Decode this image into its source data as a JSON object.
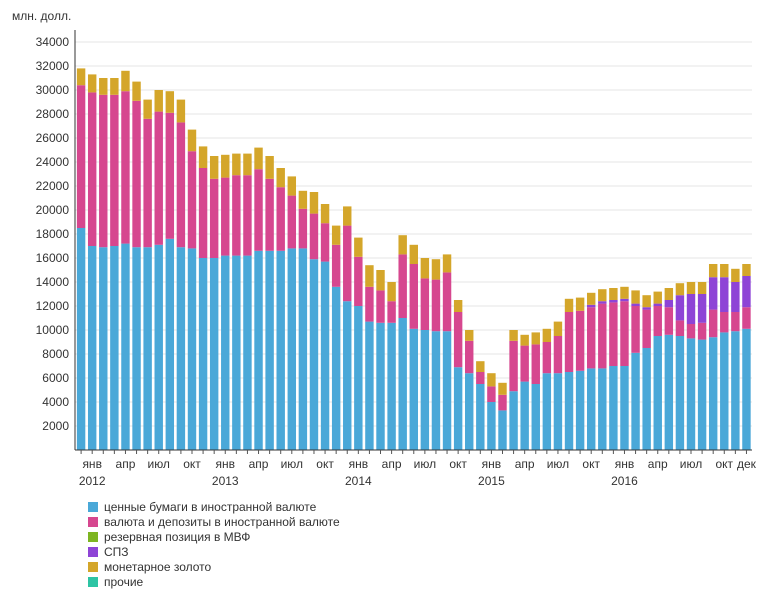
{
  "chart_data": {
    "type": "bar",
    "stacked": true,
    "ylabel": "млн. долл.",
    "ylim": [
      0,
      35000
    ],
    "yticks": [
      2000,
      4000,
      6000,
      8000,
      10000,
      12000,
      14000,
      16000,
      18000,
      20000,
      22000,
      24000,
      26000,
      28000,
      30000,
      32000,
      34000
    ],
    "grid": true,
    "legend_position": "bottom",
    "month_labels": [
      {
        "index": 1,
        "text": "янв"
      },
      {
        "index": 4,
        "text": "апр"
      },
      {
        "index": 7,
        "text": "июл"
      },
      {
        "index": 10,
        "text": "окт"
      },
      {
        "index": 13,
        "text": "янв"
      },
      {
        "index": 16,
        "text": "апр"
      },
      {
        "index": 19,
        "text": "июл"
      },
      {
        "index": 22,
        "text": "окт"
      },
      {
        "index": 25,
        "text": "янв"
      },
      {
        "index": 28,
        "text": "апр"
      },
      {
        "index": 31,
        "text": "июл"
      },
      {
        "index": 34,
        "text": "окт"
      },
      {
        "index": 37,
        "text": "янв"
      },
      {
        "index": 40,
        "text": "апр"
      },
      {
        "index": 43,
        "text": "июл"
      },
      {
        "index": 46,
        "text": "окт"
      },
      {
        "index": 49,
        "text": "янв"
      },
      {
        "index": 52,
        "text": "апр"
      },
      {
        "index": 55,
        "text": "июл"
      },
      {
        "index": 58,
        "text": "окт"
      },
      {
        "index": 60,
        "text": "дек"
      }
    ],
    "year_labels": [
      {
        "index": 1,
        "text": "2012"
      },
      {
        "index": 13,
        "text": "2013"
      },
      {
        "index": 25,
        "text": "2014"
      },
      {
        "index": 37,
        "text": "2015"
      },
      {
        "index": 49,
        "text": "2016"
      }
    ],
    "series": [
      {
        "name": "ценные бумаги в иностранной валюте",
        "color": "#4aa8d8",
        "values": [
          18500,
          17000,
          16900,
          17000,
          17200,
          16900,
          16900,
          17100,
          17600,
          16900,
          16800,
          16000,
          16000,
          16200,
          16200,
          16200,
          16600,
          16600,
          16600,
          16800,
          16800,
          15900,
          15700,
          13600,
          12400,
          12000,
          10700,
          10600,
          10600,
          11000,
          10100,
          10000,
          9900,
          9900,
          6900,
          6400,
          5500,
          4000,
          3300,
          4900,
          5700,
          5500,
          6400,
          6400,
          6500,
          6600,
          6800,
          6800,
          7000,
          7000,
          8100,
          8500,
          9500,
          9600,
          9500,
          9300,
          9200,
          9400,
          9800,
          9900,
          10100
        ]
      },
      {
        "name": "валюта и депозиты в иностранной валюте",
        "color": "#d6478f",
        "values": [
          11900,
          12800,
          12700,
          12600,
          12700,
          12200,
          10700,
          11100,
          10500,
          10400,
          8100,
          7500,
          6600,
          6500,
          6700,
          6700,
          6800,
          6000,
          5300,
          4400,
          3300,
          3800,
          3200,
          3500,
          6300,
          4100,
          2900,
          2700,
          1800,
          5300,
          5400,
          4300,
          4300,
          4900,
          4600,
          2700,
          1000,
          1300,
          1300,
          4200,
          3000,
          3300,
          2600,
          3100,
          5000,
          5000,
          5100,
          5400,
          5300,
          5400,
          3900,
          3200,
          2500,
          2300,
          1300,
          1200,
          1400,
          2300,
          1700,
          1600,
          1800
        ]
      },
      {
        "name": "резервная позиция в МВФ",
        "color": "#7db521",
        "values": [
          0,
          0,
          0,
          0,
          0,
          0,
          0,
          0,
          0,
          0,
          0,
          0,
          0,
          0,
          0,
          0,
          0,
          0,
          0,
          0,
          0,
          0,
          0,
          0,
          0,
          0,
          0,
          0,
          0,
          0,
          0,
          0,
          0,
          0,
          0,
          0,
          0,
          0,
          0,
          0,
          0,
          0,
          0,
          0,
          0,
          0,
          0,
          0,
          0,
          0,
          0,
          0,
          0,
          0,
          0,
          0,
          0,
          0,
          0,
          0,
          0
        ]
      },
      {
        "name": "СПЗ",
        "color": "#8e44d6",
        "values": [
          0,
          0,
          0,
          0,
          0,
          0,
          0,
          0,
          0,
          0,
          0,
          0,
          0,
          0,
          0,
          0,
          0,
          0,
          0,
          0,
          0,
          0,
          0,
          0,
          0,
          0,
          0,
          0,
          0,
          0,
          0,
          0,
          0,
          0,
          0,
          0,
          0,
          0,
          0,
          0,
          0,
          0,
          0,
          0,
          0,
          0,
          200,
          200,
          200,
          200,
          200,
          200,
          200,
          600,
          2100,
          2500,
          2400,
          2700,
          2900,
          2500,
          2600
        ]
      },
      {
        "name": "монетарное золото",
        "color": "#d4a62a",
        "values": [
          1400,
          1500,
          1400,
          1400,
          1700,
          1600,
          1600,
          1800,
          1800,
          1900,
          1800,
          1800,
          1900,
          1900,
          1800,
          1800,
          1800,
          1900,
          1600,
          1600,
          1500,
          1800,
          1600,
          1600,
          1600,
          1600,
          1800,
          1700,
          1600,
          1600,
          1600,
          1700,
          1700,
          1500,
          1000,
          900,
          900,
          1100,
          1000,
          900,
          900,
          1000,
          1100,
          1200,
          1100,
          1100,
          1000,
          1000,
          1000,
          1000,
          1100,
          1000,
          1000,
          1000,
          1000,
          1000,
          1000,
          1100,
          1100,
          1100,
          1000
        ]
      },
      {
        "name": "прочие",
        "color": "#2dc4a4",
        "values": [
          0,
          0,
          0,
          0,
          0,
          0,
          0,
          0,
          0,
          0,
          0,
          0,
          0,
          0,
          0,
          0,
          0,
          0,
          0,
          0,
          0,
          0,
          0,
          0,
          0,
          0,
          0,
          0,
          0,
          0,
          0,
          0,
          0,
          0,
          0,
          0,
          0,
          0,
          0,
          0,
          0,
          0,
          0,
          0,
          0,
          0,
          0,
          0,
          0,
          0,
          0,
          0,
          0,
          0,
          0,
          0,
          0,
          0,
          0,
          0,
          0
        ]
      }
    ]
  }
}
